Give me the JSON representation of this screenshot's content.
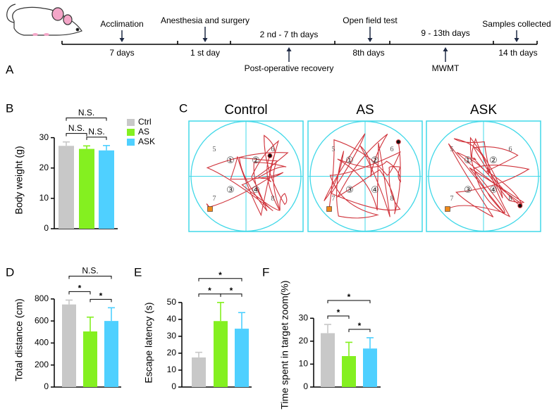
{
  "panel_labels": [
    "A",
    "B",
    "C",
    "D",
    "E",
    "F"
  ],
  "timeline": {
    "above": [
      "Acclimation",
      "Anesthesia and surgery",
      "Open field test",
      "Samples collected"
    ],
    "days": [
      "7 days",
      "1 st day",
      "2 nd - 7 th days",
      "8th days",
      "9 - 13th days",
      "14 th days"
    ],
    "below": [
      "Post-operative recovery",
      "MWMT"
    ]
  },
  "maze": {
    "titles": [
      "Control",
      "AS",
      "ASK"
    ],
    "quadrants": [
      "①",
      "②",
      "③",
      "④"
    ],
    "zones": [
      "5",
      "6",
      "7",
      "8"
    ]
  },
  "chart_data": [
    {
      "type": "bar",
      "ylabel": "Body weight (g)",
      "categories": [
        null,
        null,
        null
      ],
      "legend": [
        "Ctrl",
        "AS",
        "ASK"
      ],
      "colors": [
        "#c8c8c8",
        "#84f020",
        "#4fd0ff"
      ],
      "values": [
        27.3,
        26.3,
        25.8
      ],
      "errors": [
        1.3,
        1.0,
        1.6
      ],
      "ylim": [
        0,
        32
      ],
      "yticks": [
        0,
        10,
        20,
        30
      ],
      "comparisons": [
        {
          "pair": [
            0,
            1
          ],
          "label": "N.S."
        },
        {
          "pair": [
            1,
            2
          ],
          "label": "N.S."
        },
        {
          "pair": [
            0,
            2
          ],
          "label": "N.S."
        }
      ]
    },
    {
      "type": "bar",
      "ylabel": "Total distance (cm)",
      "categories": [
        null,
        null,
        null
      ],
      "colors": [
        "#c8c8c8",
        "#84f020",
        "#4fd0ff"
      ],
      "values": [
        750,
        505,
        600
      ],
      "errors": [
        40,
        130,
        120
      ],
      "ylim": [
        0,
        850
      ],
      "yticks": [
        0,
        200,
        400,
        600,
        800
      ],
      "comparisons": [
        {
          "pair": [
            0,
            1
          ],
          "label": "*"
        },
        {
          "pair": [
            1,
            2
          ],
          "label": "*"
        },
        {
          "pair": [
            0,
            2
          ],
          "label": "N.S."
        }
      ]
    },
    {
      "type": "bar",
      "ylabel": "Escape latency (s)",
      "categories": [
        null,
        null,
        null
      ],
      "colors": [
        "#c8c8c8",
        "#84f020",
        "#4fd0ff"
      ],
      "values": [
        17.5,
        39,
        34.5
      ],
      "errors": [
        3,
        11,
        9.5
      ],
      "ylim": [
        0,
        52
      ],
      "yticks": [
        0,
        10,
        20,
        30,
        40,
        50
      ],
      "comparisons": [
        {
          "pair": [
            0,
            1
          ],
          "label": "*"
        },
        {
          "pair": [
            1,
            2
          ],
          "label": "*"
        },
        {
          "pair": [
            0,
            2
          ],
          "label": "*"
        }
      ]
    },
    {
      "type": "bar",
      "ylabel": "Time spent in target zoom(%)",
      "categories": [
        null,
        null,
        null
      ],
      "colors": [
        "#c8c8c8",
        "#84f020",
        "#4fd0ff"
      ],
      "values": [
        23.5,
        13.5,
        16.8
      ],
      "errors": [
        3.8,
        6,
        4.7
      ],
      "ylim": [
        0,
        31
      ],
      "yticks": [
        0,
        10,
        20,
        30
      ],
      "comparisons": [
        {
          "pair": [
            0,
            1
          ],
          "label": "*"
        },
        {
          "pair": [
            1,
            2
          ],
          "label": "*"
        },
        {
          "pair": [
            0,
            2
          ],
          "label": "*"
        }
      ]
    }
  ]
}
